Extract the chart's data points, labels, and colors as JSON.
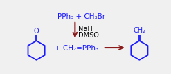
{
  "bg_color": "#f0f0f0",
  "blue": "#1a1aff",
  "dark_red": "#8b1a1a",
  "black": "#000000",
  "top_text": "PPh₃ + CH₃Br",
  "side_text1": "NaH",
  "side_text2": "DMSO",
  "ylide_text": "+ CH₂=PPh₃",
  "fig_width": 2.47,
  "fig_height": 1.07,
  "dpi": 100
}
